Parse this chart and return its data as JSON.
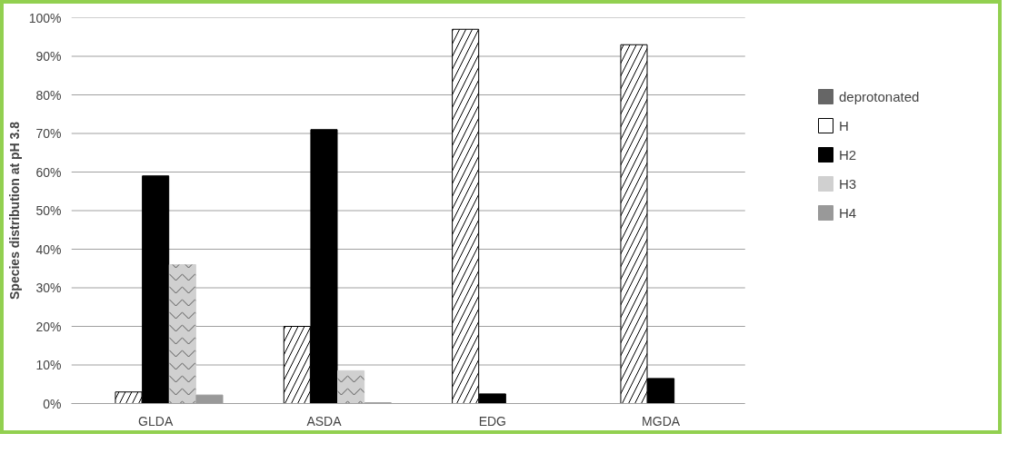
{
  "chart_data": {
    "type": "bar",
    "ylabel": "Species distribution at pH 3.8",
    "categories": [
      "GLDA",
      "ASDA",
      "EDG",
      "MGDA"
    ],
    "series": [
      {
        "name": "deprotonated",
        "color": "#666666",
        "values": [
          0,
          0,
          0,
          0
        ]
      },
      {
        "name": "H",
        "color": "#ffffff",
        "values": [
          3,
          20,
          97,
          93
        ]
      },
      {
        "name": "H2",
        "color": "#000000",
        "values": [
          59,
          71,
          2.5,
          6.5
        ]
      },
      {
        "name": "H3",
        "color": "#d0d0d0",
        "values": [
          36,
          8.5,
          0,
          0
        ]
      },
      {
        "name": "H4",
        "color": "#999999",
        "values": [
          2.2,
          0.2,
          0,
          0
        ]
      }
    ],
    "ylim": [
      0,
      100
    ],
    "yticks": [
      {
        "value": 0,
        "label": "0%"
      },
      {
        "value": 10,
        "label": "10%"
      },
      {
        "value": 20,
        "label": "20%"
      },
      {
        "value": 30,
        "label": "30%"
      },
      {
        "value": 40,
        "label": "40%"
      },
      {
        "value": 50,
        "label": "50%"
      },
      {
        "value": 60,
        "label": "60%"
      },
      {
        "value": 70,
        "label": "70%"
      },
      {
        "value": 80,
        "label": "80%"
      },
      {
        "value": 90,
        "label": "90%"
      },
      {
        "value": 100,
        "label": "100%"
      }
    ],
    "grid": "y",
    "legend": "right"
  }
}
